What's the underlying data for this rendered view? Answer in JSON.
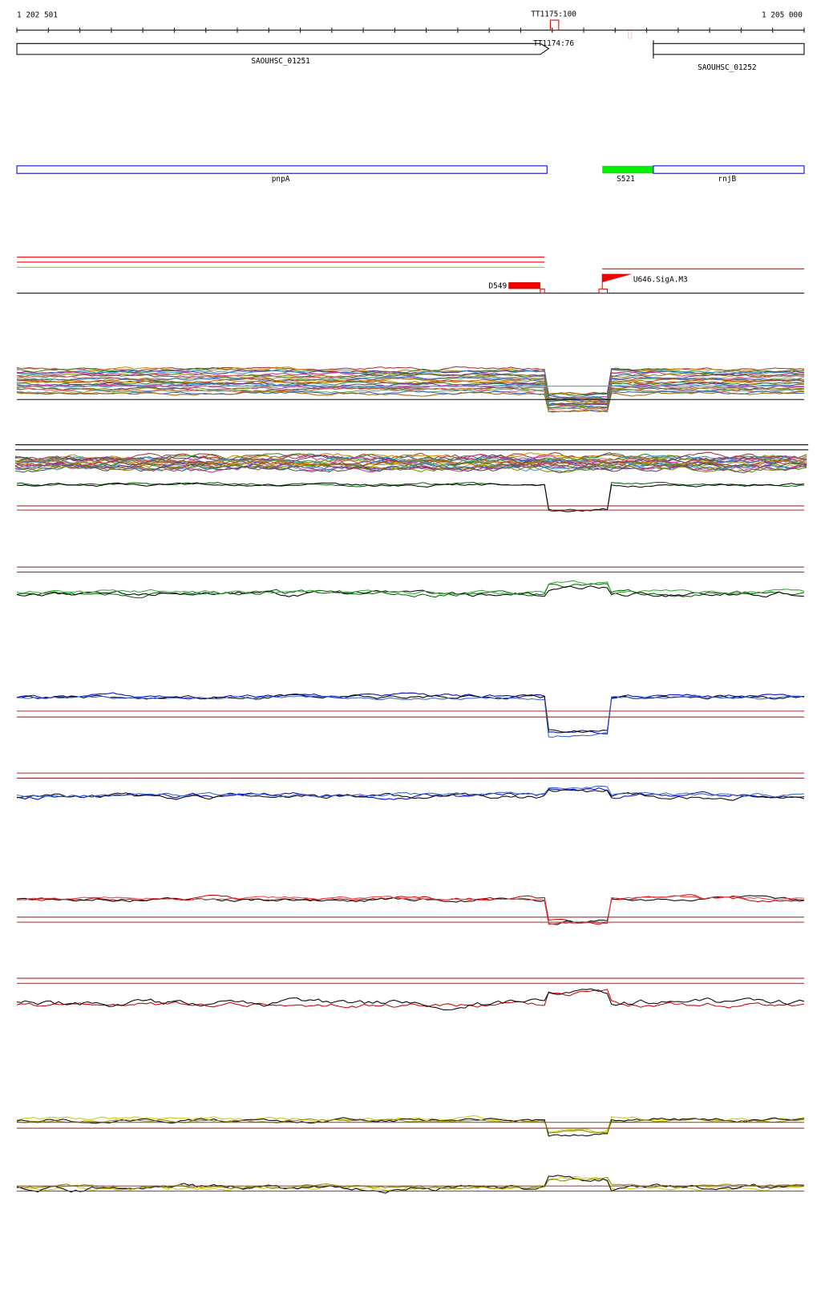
{
  "ruler": {
    "start_label": "1 202 501",
    "end_label": "1 205 000"
  },
  "terminators": [
    {
      "label": "TT1175:100"
    },
    {
      "label": "TT1174:76"
    }
  ],
  "genes": [
    {
      "label": "SAOUHSC_01251"
    },
    {
      "label": "SAOUHSC_01252"
    }
  ],
  "annotations": [
    {
      "label": "pnpA"
    },
    {
      "label": "S521"
    },
    {
      "label": "rnjB"
    }
  ],
  "features": [
    {
      "label": "D549"
    },
    {
      "label": "U646.SigA.M3"
    }
  ]
}
